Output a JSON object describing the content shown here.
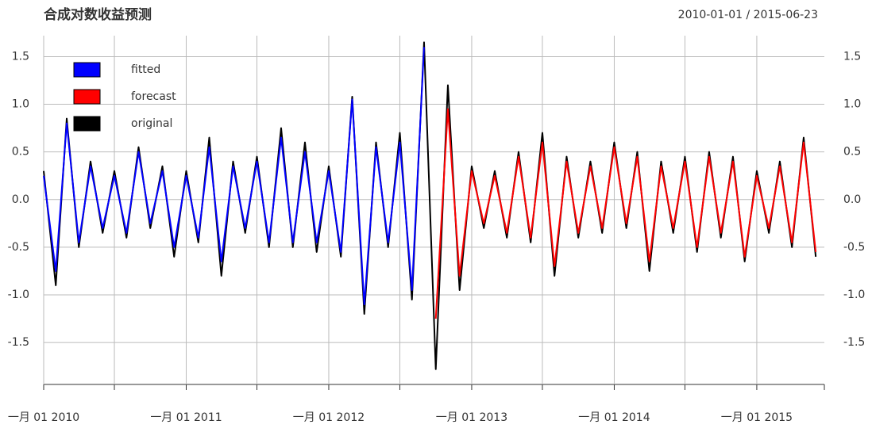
{
  "chart_data": {
    "type": "line",
    "title": "合成对数收益预测",
    "date_range": "2010-01-01 / 2015-06-23",
    "x": [
      "2010-01-01",
      "2010-02-01",
      "2010-03-01",
      "2010-04-01",
      "2010-05-01",
      "2010-06-01",
      "2010-07-01",
      "2010-08-01",
      "2010-09-01",
      "2010-10-01",
      "2010-11-01",
      "2010-12-01",
      "2011-01-01",
      "2011-02-01",
      "2011-03-01",
      "2011-04-01",
      "2011-05-01",
      "2011-06-01",
      "2011-07-01",
      "2011-08-01",
      "2011-09-01",
      "2011-10-01",
      "2011-11-01",
      "2011-12-01",
      "2012-01-01",
      "2012-02-01",
      "2012-03-01",
      "2012-04-01",
      "2012-05-01",
      "2012-06-01",
      "2012-07-01",
      "2012-08-01",
      "2012-09-01",
      "2012-10-01",
      "2012-11-01",
      "2012-12-01",
      "2013-01-01",
      "2013-02-01",
      "2013-03-01",
      "2013-04-01",
      "2013-05-01",
      "2013-06-01",
      "2013-07-01",
      "2013-08-01",
      "2013-09-01",
      "2013-10-01",
      "2013-11-01",
      "2013-12-01",
      "2014-01-01",
      "2014-02-01",
      "2014-03-01",
      "2014-04-01",
      "2014-05-01",
      "2014-06-01",
      "2014-07-01",
      "2014-08-01",
      "2014-09-01",
      "2014-10-01",
      "2014-11-01",
      "2014-12-01",
      "2015-01-01",
      "2015-02-01",
      "2015-03-01",
      "2015-04-01",
      "2015-05-01",
      "2015-06-01"
    ],
    "series": [
      {
        "name": "fitted",
        "color": "#0000ff",
        "values": [
          0.25,
          -0.75,
          0.8,
          -0.45,
          0.35,
          -0.3,
          0.25,
          -0.35,
          0.5,
          -0.25,
          0.3,
          -0.5,
          0.25,
          -0.4,
          0.55,
          -0.65,
          0.35,
          -0.3,
          0.4,
          -0.45,
          0.65,
          -0.45,
          0.5,
          -0.45,
          0.3,
          -0.55,
          1.05,
          -1.1,
          0.55,
          -0.45,
          0.6,
          -0.95,
          1.6,
          null,
          null,
          null,
          null,
          null,
          null,
          null,
          null,
          null,
          null,
          null,
          null,
          null,
          null,
          null,
          null,
          null,
          null,
          null,
          null,
          null,
          null,
          null,
          null,
          null,
          null,
          null,
          null,
          null,
          null,
          null,
          null,
          null
        ]
      },
      {
        "name": "forecast",
        "color": "#ff0000",
        "values": [
          null,
          null,
          null,
          null,
          null,
          null,
          null,
          null,
          null,
          null,
          null,
          null,
          null,
          null,
          null,
          null,
          null,
          null,
          null,
          null,
          null,
          null,
          null,
          null,
          null,
          null,
          null,
          null,
          null,
          null,
          null,
          null,
          null,
          -1.25,
          0.95,
          -0.8,
          0.3,
          -0.25,
          0.25,
          -0.35,
          0.45,
          -0.4,
          0.6,
          -0.7,
          0.4,
          -0.35,
          0.35,
          -0.3,
          0.55,
          -0.25,
          0.45,
          -0.65,
          0.35,
          -0.3,
          0.4,
          -0.5,
          0.45,
          -0.35,
          0.4,
          -0.6,
          0.25,
          -0.3,
          0.35,
          -0.45,
          0.6,
          -0.55
        ]
      },
      {
        "name": "original",
        "color": "#000000",
        "values": [
          0.3,
          -0.9,
          0.85,
          -0.5,
          0.4,
          -0.35,
          0.3,
          -0.4,
          0.55,
          -0.3,
          0.35,
          -0.6,
          0.3,
          -0.45,
          0.65,
          -0.8,
          0.4,
          -0.35,
          0.45,
          -0.5,
          0.75,
          -0.5,
          0.6,
          -0.55,
          0.35,
          -0.6,
          1.08,
          -1.2,
          0.6,
          -0.5,
          0.7,
          -1.05,
          1.65,
          -1.78,
          1.2,
          -0.95,
          0.35,
          -0.3,
          0.3,
          -0.4,
          0.5,
          -0.45,
          0.7,
          -0.8,
          0.45,
          -0.4,
          0.4,
          -0.35,
          0.6,
          -0.3,
          0.5,
          -0.75,
          0.4,
          -0.35,
          0.45,
          -0.55,
          0.5,
          -0.4,
          0.45,
          -0.65,
          0.3,
          -0.35,
          0.4,
          -0.5,
          0.65,
          -0.6
        ]
      }
    ],
    "xlim": [
      "2010-01-01",
      "2015-06-23"
    ],
    "xticks": [
      {
        "value": "2010-01-01",
        "label": "一月 01 2010"
      },
      {
        "value": "2010-07-01",
        "label": null
      },
      {
        "value": "2011-01-01",
        "label": "一月 01 2011"
      },
      {
        "value": "2011-07-01",
        "label": null
      },
      {
        "value": "2012-01-01",
        "label": "一月 01 2012"
      },
      {
        "value": "2012-07-01",
        "label": null
      },
      {
        "value": "2013-01-01",
        "label": "一月 01 2013"
      },
      {
        "value": "2013-07-01",
        "label": null
      },
      {
        "value": "2014-01-01",
        "label": "一月 01 2014"
      },
      {
        "value": "2014-07-01",
        "label": null
      },
      {
        "value": "2015-01-01",
        "label": "一月 01 2015"
      }
    ],
    "ylim": [
      -1.94,
      1.72
    ],
    "yticks": [
      {
        "value": -1.5,
        "label": "-1.5"
      },
      {
        "value": -1,
        "label": "-1.0"
      },
      -0.5,
      {
        "value": 0,
        "label": "0.0"
      },
      0.5,
      {
        "value": 1,
        "label": "1.0"
      },
      1.5
    ],
    "grid": true,
    "legend_position": "top-left"
  }
}
